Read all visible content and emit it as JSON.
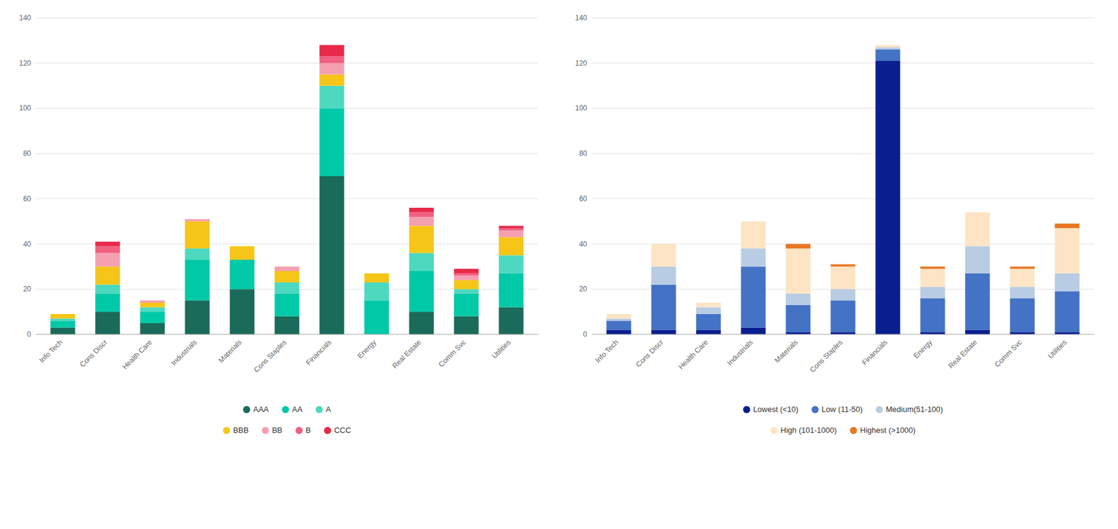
{
  "chart_data": [
    {
      "type": "bar",
      "stacked": true,
      "grid": true,
      "legend": "bottom",
      "categories": [
        "Info Tech",
        "Cons Discr",
        "Health Care",
        "Industrials",
        "Materials",
        "Cons Staples",
        "Financials",
        "Energy",
        "Real Estate",
        "Comm Svc",
        "Utilities"
      ],
      "series": [
        {
          "name": "AAA",
          "color": "#1a6b5a",
          "values": [
            3,
            10,
            5,
            15,
            20,
            8,
            70,
            0,
            10,
            8,
            12
          ]
        },
        {
          "name": "AA",
          "color": "#00c9a7",
          "values": [
            3,
            8,
            5,
            18,
            13,
            10,
            30,
            15,
            18,
            10,
            15
          ]
        },
        {
          "name": "A",
          "color": "#4dd9c0",
          "values": [
            1,
            4,
            2,
            5,
            0,
            5,
            10,
            8,
            8,
            2,
            8
          ]
        },
        {
          "name": "BBB",
          "color": "#f5c518",
          "values": [
            2,
            8,
            2,
            12,
            6,
            5,
            5,
            4,
            12,
            4,
            8
          ]
        },
        {
          "name": "BB",
          "color": "#f4a0b0",
          "values": [
            0,
            6,
            1,
            1,
            0,
            2,
            5,
            0,
            4,
            2,
            3
          ]
        },
        {
          "name": "B",
          "color": "#f06080",
          "values": [
            0,
            3,
            0,
            0,
            0,
            0,
            3,
            0,
            2,
            1,
            1
          ]
        },
        {
          "name": "CCC",
          "color": "#e8294a",
          "values": [
            0,
            2,
            0,
            0,
            0,
            0,
            5,
            0,
            2,
            2,
            1
          ]
        }
      ],
      "ylim": [
        0,
        140
      ],
      "yticks": [
        0,
        20,
        40,
        60,
        80,
        100,
        120,
        140
      ]
    },
    {
      "type": "bar",
      "stacked": true,
      "grid": true,
      "legend": "bottom",
      "categories": [
        "Info Tech",
        "Cons Discr",
        "Health Care",
        "Industrials",
        "Materials",
        "Cons Staples",
        "Financials",
        "Energy",
        "Real Estate",
        "Comm Svc",
        "Utilities"
      ],
      "series": [
        {
          "name": "Lowest (<10)",
          "color": "#0a1f8f",
          "values": [
            2,
            2,
            2,
            3,
            1,
            1,
            121,
            1,
            2,
            1,
            1
          ]
        },
        {
          "name": "Low (11-50)",
          "color": "#4472c4",
          "values": [
            4,
            20,
            7,
            27,
            12,
            14,
            5,
            15,
            25,
            15,
            18
          ]
        },
        {
          "name": "Medium(51-100)",
          "color": "#b8cce4",
          "values": [
            1,
            8,
            3,
            8,
            5,
            5,
            1,
            5,
            12,
            5,
            8
          ]
        },
        {
          "name": "High (101-1000)",
          "color": "#fce4c4",
          "values": [
            2,
            10,
            2,
            12,
            20,
            10,
            1,
            8,
            15,
            8,
            20
          ]
        },
        {
          "name": "Highest (>1000)",
          "color": "#e87722",
          "values": [
            0,
            0,
            0,
            0,
            2,
            1,
            0,
            1,
            0,
            1,
            2
          ]
        }
      ],
      "ylim": [
        0,
        140
      ],
      "yticks": [
        0,
        20,
        40,
        60,
        80,
        100,
        120,
        140
      ]
    }
  ]
}
